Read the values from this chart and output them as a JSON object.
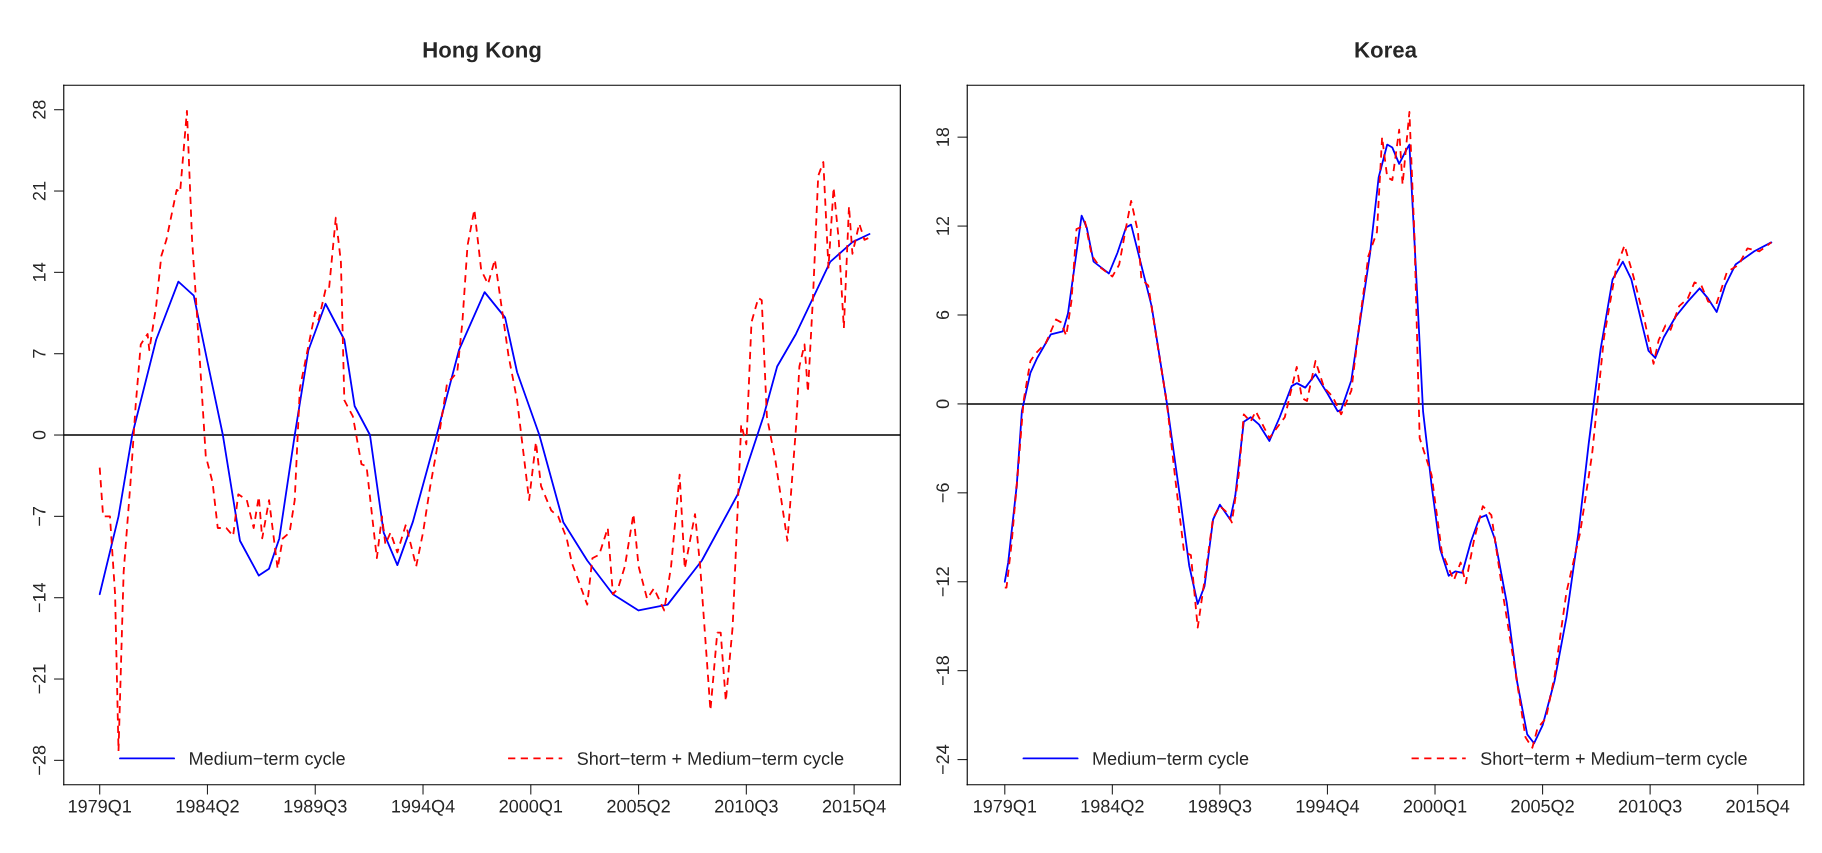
{
  "chart_data": [
    {
      "type": "line",
      "title": "Hong Kong",
      "xlim": [
        "1977-04",
        "2018-01"
      ],
      "ylim": [
        -30.1,
        30.1
      ],
      "xticks": [
        {
          "value": "1979-01",
          "label": "1979Q1"
        },
        {
          "value": "1984-04",
          "label": "1984Q2"
        },
        {
          "value": "1989-07",
          "label": "1989Q3"
        },
        {
          "value": "1994-10",
          "label": "1994Q4"
        },
        {
          "value": "2000-01",
          "label": "2000Q1"
        },
        {
          "value": "2005-04",
          "label": "2005Q2"
        },
        {
          "value": "2010-07",
          "label": "2010Q3"
        },
        {
          "value": "2015-10",
          "label": "2015Q4"
        }
      ],
      "yticks": [
        -28,
        -21,
        -14,
        -7,
        0,
        7,
        14,
        21,
        28
      ],
      "grid": false,
      "legend": "bottom",
      "marker": "none",
      "ref_lines": [
        {
          "axis": "y",
          "value": 0,
          "color": "#000000"
        }
      ],
      "series": [
        {
          "name": "Medium−term cycle",
          "color": "#0000ff",
          "line_style": "solid",
          "x": [
            "1979-01",
            "1979-12",
            "1980-08",
            "1981-10",
            "1982-11",
            "1983-08",
            "1984-04",
            "1985-01",
            "1985-11",
            "1986-10",
            "1987-04",
            "1987-10",
            "1988-07",
            "1989-03",
            "1990-01",
            "1990-12",
            "1991-06",
            "1992-03",
            "1992-11",
            "1993-07",
            "1994-04",
            "1995-06",
            "1996-07",
            "1997-10",
            "1998-10",
            "1999-05",
            "2000-06",
            "2001-08",
            "2002-10",
            "2004-01",
            "2005-04",
            "2006-09",
            "2008-05",
            "2010-02",
            "2011-05",
            "2012-01",
            "2012-12",
            "2014-08",
            "2015-09",
            "2016-07"
          ],
          "values": [
            -13.7,
            -7.0,
            0,
            8.2,
            13.2,
            12.0,
            6.3,
            0,
            -9.1,
            -12.1,
            -11.5,
            -8.9,
            0,
            7.3,
            11.3,
            8.2,
            2.5,
            0,
            -8.4,
            -11.2,
            -7.5,
            0,
            7.3,
            12.3,
            10.1,
            5.4,
            0,
            -7.5,
            -10.8,
            -13.7,
            -15.1,
            -14.6,
            -10.8,
            -5.1,
            1.6,
            5.9,
            8.7,
            14.9,
            16.6,
            17.3
          ]
        },
        {
          "name": "Short−term + Medium−term cycle",
          "color": "#ff0000",
          "line_style": "dashed",
          "x": [
            "1979-01",
            "1979-03",
            "1979-07",
            "1979-10",
            "1979-12",
            "1980-03",
            "1980-07",
            "1980-10",
            "1981-01",
            "1981-05",
            "1981-06",
            "1981-10",
            "1982-01",
            "1982-04",
            "1982-10",
            "1982-12",
            "1983-04",
            "1983-07",
            "1983-10",
            "1984-03",
            "1984-07",
            "1984-10",
            "1985-03",
            "1985-07",
            "1985-10",
            "1986-03",
            "1986-07",
            "1986-10",
            "1986-12",
            "1987-04",
            "1987-09",
            "1987-12",
            "1988-04",
            "1988-07",
            "1988-10",
            "1989-07",
            "1989-09",
            "1990-01",
            "1990-03",
            "1990-07",
            "1990-10",
            "1990-12",
            "1991-05",
            "1991-10",
            "1992-01",
            "1992-07",
            "1992-10",
            "1992-12",
            "1993-03",
            "1993-07",
            "1993-12",
            "1994-06",
            "1994-10",
            "1995-02",
            "1995-06",
            "1995-12",
            "1996-06",
            "1996-09",
            "1996-12",
            "1997-04",
            "1997-08",
            "1997-12",
            "1998-04",
            "1998-12",
            "1999-05",
            "1999-12",
            "2000-04",
            "2000-07",
            "2001-01",
            "2001-05",
            "2001-10",
            "2002-01",
            "2002-10",
            "2003-01",
            "2003-05",
            "2003-10",
            "2004-01",
            "2004-04",
            "2004-08",
            "2005-01",
            "2005-04",
            "2005-09",
            "2006-01",
            "2006-07",
            "2006-11",
            "2007-04",
            "2007-07",
            "2008-01",
            "2008-04",
            "2008-10",
            "2009-02",
            "2009-04",
            "2009-07",
            "2009-11",
            "2010-04",
            "2010-07",
            "2010-10",
            "2011-02",
            "2011-04",
            "2011-07",
            "2011-12",
            "2012-07",
            "2012-12",
            "2013-02",
            "2013-05",
            "2013-07",
            "2013-10",
            "2014-01",
            "2014-04",
            "2014-07",
            "2014-10",
            "2015-01",
            "2015-04",
            "2015-07",
            "2015-09",
            "2016-01",
            "2016-04",
            "2016-07"
          ],
          "values": [
            -2.8,
            -7.0,
            -7.0,
            -13.7,
            -27.2,
            -11.8,
            -4.1,
            2.5,
            7.8,
            8.7,
            7.3,
            11.1,
            15.4,
            16.8,
            21.1,
            20.9,
            27.9,
            16.8,
            10.1,
            -1.8,
            -4.1,
            -8.0,
            -8.0,
            -8.7,
            -5.1,
            -5.6,
            -8.0,
            -5.3,
            -8.9,
            -5.6,
            -11.5,
            -8.9,
            -8.4,
            -5.6,
            4.0,
            10.6,
            9.9,
            12.5,
            12.5,
            18.7,
            14.9,
            3.0,
            1.6,
            -2.5,
            -2.7,
            -10.6,
            -7.0,
            -9.4,
            -8.4,
            -10.1,
            -7.7,
            -11.3,
            -8.4,
            -4.6,
            -1.3,
            4.4,
            5.4,
            9.7,
            16.3,
            19.4,
            14.2,
            13.0,
            15.1,
            6.8,
            3.0,
            -5.6,
            -0.6,
            -4.4,
            -6.5,
            -7.0,
            -8.9,
            -11.0,
            -14.6,
            -10.6,
            -10.3,
            -8.0,
            -13.7,
            -13.2,
            -11.3,
            -6.8,
            -11.3,
            -14.1,
            -13.2,
            -15.1,
            -11.3,
            -3.4,
            -11.5,
            -6.8,
            -11.3,
            -23.7,
            -17.0,
            -17.0,
            -22.9,
            -16.5,
            0.9,
            -0.8,
            9.7,
            11.8,
            11.6,
            1.6,
            -2.2,
            -9.1,
            0.6,
            5.9,
            7.8,
            3.7,
            12.0,
            22.3,
            23.5,
            14.4,
            21.3,
            16.8,
            9.2,
            19.7,
            15.6,
            18.2,
            16.8,
            17.0
          ]
        }
      ]
    },
    {
      "type": "line",
      "title": "Korea",
      "xlim": [
        "1977-03",
        "2018-01"
      ],
      "ylim": [
        -25.7,
        21.5
      ],
      "xticks": [
        {
          "value": "1979-01",
          "label": "1979Q1"
        },
        {
          "value": "1984-04",
          "label": "1984Q2"
        },
        {
          "value": "1989-07",
          "label": "1989Q3"
        },
        {
          "value": "1994-10",
          "label": "1994Q4"
        },
        {
          "value": "2000-01",
          "label": "2000Q1"
        },
        {
          "value": "2005-04",
          "label": "2005Q2"
        },
        {
          "value": "2010-07",
          "label": "2010Q3"
        },
        {
          "value": "2015-10",
          "label": "2015Q4"
        }
      ],
      "yticks": [
        -24,
        -18,
        -12,
        -6,
        0,
        6,
        12,
        18
      ],
      "grid": false,
      "legend": "bottom",
      "marker": "none",
      "ref_lines": [
        {
          "axis": "y",
          "value": 0,
          "color": "#000000"
        }
      ],
      "series": [
        {
          "name": "Medium−term cycle",
          "color": "#0000ff",
          "line_style": "solid",
          "x": [
            "1979-01",
            "1979-03",
            "1979-08",
            "1979-11",
            "1980-04",
            "1980-08",
            "1981-04",
            "1981-11",
            "1982-02",
            "1982-06",
            "1982-10",
            "1983-01",
            "1983-05",
            "1984-02",
            "1984-07",
            "1984-12",
            "1985-03",
            "1985-08",
            "1986-03",
            "1986-12",
            "1987-08",
            "1988-01",
            "1988-06",
            "1988-10",
            "1989-03",
            "1989-07",
            "1990-01",
            "1990-04",
            "1990-09",
            "1991-01",
            "1991-06",
            "1991-12",
            "1992-06",
            "1993-01",
            "1993-04",
            "1993-09",
            "1994-03",
            "1994-10",
            "1995-04",
            "1995-06",
            "1995-12",
            "1996-05",
            "1996-11",
            "1997-04",
            "1997-09",
            "1997-12",
            "1998-04",
            "1998-08",
            "1998-10",
            "1999-01",
            "1999-06",
            "1999-11",
            "2000-04",
            "2000-09",
            "2001-01",
            "2001-05",
            "2001-10",
            "2002-03",
            "2002-07",
            "2002-12",
            "2003-07",
            "2004-01",
            "2004-07",
            "2004-11",
            "2005-04",
            "2005-11",
            "2006-06",
            "2007-01",
            "2007-07",
            "2008-02",
            "2008-09",
            "2009-03",
            "2009-08",
            "2010-02",
            "2010-06",
            "2010-10",
            "2011-03",
            "2011-10",
            "2012-05",
            "2012-12",
            "2013-05",
            "2013-10",
            "2014-03",
            "2014-09",
            "2015-08",
            "2016-06"
          ],
          "values": [
            -12.0,
            -10.7,
            -5.5,
            -0.5,
            2.1,
            3.1,
            4.7,
            4.9,
            6.1,
            9.4,
            12.7,
            11.9,
            9.6,
            8.8,
            10.2,
            11.9,
            12.1,
            9.8,
            6.6,
            0,
            -6.6,
            -10.9,
            -13.5,
            -12.3,
            -7.8,
            -6.8,
            -7.8,
            -6.2,
            -1.2,
            -0.9,
            -1.4,
            -2.5,
            -0.9,
            1.2,
            1.4,
            1.1,
            2.0,
            0.7,
            -0.5,
            -0.4,
            1.6,
            5.5,
            10.2,
            15.3,
            17.5,
            17.3,
            16.2,
            17.1,
            17.5,
            10.9,
            -0.5,
            -5.5,
            -9.8,
            -11.6,
            -11.3,
            -11.4,
            -9.3,
            -7.7,
            -7.5,
            -9.1,
            -13.4,
            -18.7,
            -22.3,
            -22.9,
            -21.7,
            -18.7,
            -14.4,
            -8.7,
            -2.7,
            3.7,
            8.4,
            9.6,
            8.4,
            5.5,
            3.6,
            3.1,
            4.5,
            5.9,
            6.9,
            7.8,
            7.1,
            6.2,
            8.0,
            9.4,
            10.3,
            10.9
          ]
        },
        {
          "name": "Short−term + Medium−term cycle",
          "color": "#ff0000",
          "line_style": "dashed",
          "x": [
            "1979-01",
            "1979-02",
            "1979-05",
            "1979-09",
            "1979-12",
            "1980-04",
            "1980-07",
            "1981-01",
            "1981-07",
            "1981-10",
            "1982-01",
            "1982-04",
            "1982-07",
            "1982-09",
            "1982-12",
            "1983-04",
            "1983-09",
            "1984-04",
            "1984-08",
            "1984-12",
            "1985-03",
            "1985-07",
            "1985-09",
            "1986-01",
            "1986-07",
            "1986-12",
            "1987-05",
            "1987-10",
            "1988-02",
            "1988-06",
            "1988-10",
            "1989-03",
            "1989-07",
            "1989-11",
            "1990-02",
            "1990-06",
            "1990-09",
            "1991-01",
            "1991-04",
            "1991-12",
            "1992-09",
            "1993-04",
            "1993-07",
            "1993-10",
            "1994-03",
            "1994-08",
            "1995-01",
            "1995-06",
            "1995-12",
            "1996-05",
            "1996-10",
            "1997-03",
            "1997-06",
            "1997-09",
            "1997-12",
            "1998-04",
            "1998-06",
            "1998-10",
            "1999-01",
            "1999-04",
            "1999-11",
            "2000-05",
            "2000-12",
            "2001-04",
            "2001-07",
            "2001-12",
            "2002-05",
            "2002-10",
            "2003-05",
            "2003-12",
            "2004-06",
            "2004-10",
            "2005-01",
            "2005-06",
            "2005-11",
            "2006-06",
            "2007-02",
            "2007-09",
            "2008-04",
            "2008-11",
            "2009-04",
            "2009-09",
            "2010-04",
            "2010-09",
            "2010-12",
            "2011-04",
            "2011-07",
            "2011-12",
            "2012-05",
            "2012-09",
            "2013-01",
            "2013-05",
            "2013-10",
            "2014-04",
            "2014-11",
            "2015-04",
            "2015-11",
            "2016-06"
          ],
          "values": [
            -12.4,
            -12.4,
            -9.4,
            -4.1,
            0.2,
            2.9,
            3.4,
            4.1,
            5.7,
            5.5,
            4.6,
            6.9,
            11.8,
            11.9,
            12.3,
            10.0,
            9.2,
            8.6,
            9.4,
            11.9,
            13.7,
            11.6,
            8.4,
            8.0,
            3.6,
            0,
            -5.2,
            -10.0,
            -10.2,
            -15.1,
            -11.9,
            -7.7,
            -6.9,
            -7.3,
            -8.0,
            -4.8,
            -0.7,
            -1.2,
            -0.5,
            -2.3,
            -0.9,
            2.5,
            0.4,
            0.2,
            2.9,
            1.1,
            0.5,
            -0.7,
            0.9,
            5.7,
            10.0,
            11.6,
            18.0,
            15.3,
            15.1,
            18.5,
            14.8,
            19.7,
            11.2,
            -2.3,
            -4.8,
            -10.0,
            -11.9,
            -10.7,
            -12.1,
            -9.1,
            -6.9,
            -7.5,
            -13.0,
            -18.0,
            -22.5,
            -23.2,
            -21.9,
            -21.2,
            -18.4,
            -12.7,
            -8.7,
            -3.4,
            4.5,
            9.1,
            10.7,
            8.7,
            5.5,
            2.7,
            4.3,
            5.3,
            5.0,
            6.6,
            7.1,
            8.2,
            8.0,
            6.9,
            6.8,
            8.9,
            9.4,
            10.5,
            10.3,
            10.9
          ]
        }
      ]
    }
  ]
}
